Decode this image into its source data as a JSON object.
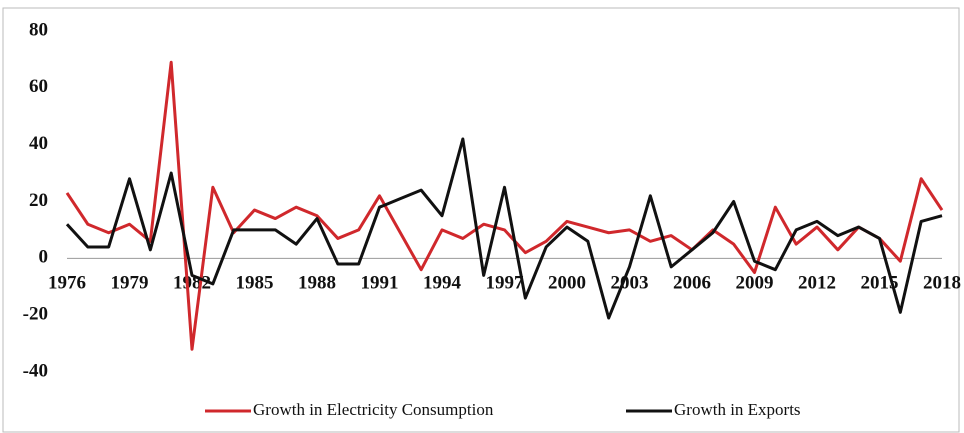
{
  "chart_data": {
    "type": "line",
    "x": [
      1976,
      1977,
      1978,
      1979,
      1980,
      1981,
      1982,
      1983,
      1984,
      1985,
      1986,
      1987,
      1988,
      1989,
      1990,
      1991,
      1992,
      1993,
      1994,
      1995,
      1996,
      1997,
      1998,
      1999,
      2000,
      2001,
      2002,
      2003,
      2004,
      2005,
      2006,
      2007,
      2008,
      2009,
      2010,
      2011,
      2012,
      2013,
      2014,
      2015,
      2016,
      2017,
      2018
    ],
    "series": [
      {
        "name": "Growth in Electricity Consumption",
        "color": "#d0282c",
        "values": [
          23,
          12,
          9,
          12,
          6,
          69,
          -32,
          25,
          9,
          17,
          14,
          18,
          15,
          7,
          10,
          22,
          9,
          -4,
          10,
          7,
          12,
          10,
          2,
          6,
          13,
          11,
          9,
          10,
          6,
          8,
          3,
          10,
          5,
          -5,
          18,
          5,
          11,
          3,
          11,
          7,
          -1,
          28,
          17
        ]
      },
      {
        "name": "Growth in Exports",
        "color": "#111111",
        "values": [
          12,
          4,
          4,
          28,
          3,
          30,
          -6,
          -9,
          10,
          10,
          10,
          5,
          14,
          -2,
          -2,
          18,
          21,
          24,
          15,
          42,
          -6,
          25,
          -14,
          4,
          11,
          6,
          -21,
          -3,
          22,
          -3,
          3,
          9,
          20,
          -1,
          -4,
          10,
          13,
          8,
          11,
          7,
          -19,
          13,
          15
        ]
      }
    ],
    "xlim": [
      1976,
      2018
    ],
    "xticks": [
      1976,
      1979,
      1982,
      1985,
      1988,
      1991,
      1994,
      1997,
      2000,
      2003,
      2006,
      2009,
      2012,
      2015,
      2018
    ],
    "ylim": [
      -40,
      80
    ],
    "yticks": [
      -40,
      -20,
      0,
      20,
      40,
      60,
      80
    ]
  }
}
